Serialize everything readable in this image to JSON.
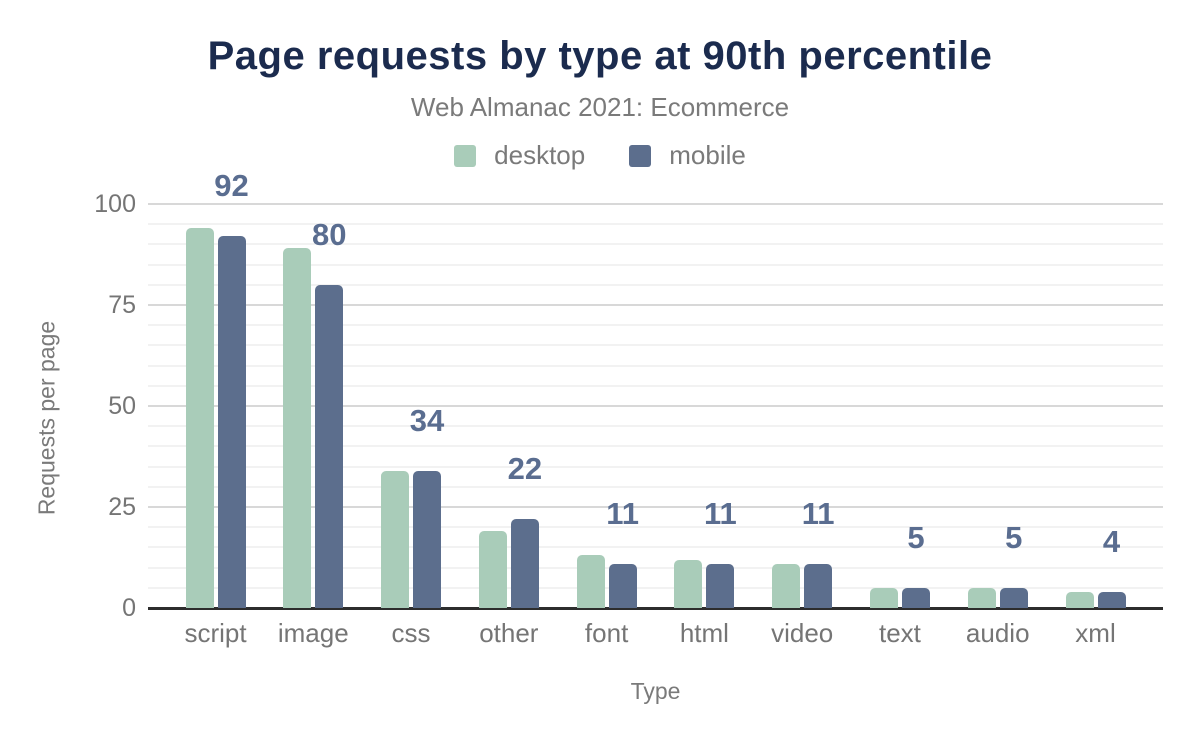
{
  "chart_data": {
    "type": "bar",
    "title": "Page requests by type at 90th percentile",
    "subtitle": "Web Almanac 2021: Ecommerce",
    "xlabel": "Type",
    "ylabel": "Requests per page",
    "ylim": [
      0,
      100
    ],
    "yticks": [
      0,
      25,
      50,
      75,
      100
    ],
    "grid": "horizontal; faint minor lines every 5, slightly darker major lines every 25",
    "legend_position": "top center",
    "categories": [
      "script",
      "image",
      "css",
      "other",
      "font",
      "html",
      "video",
      "text",
      "audio",
      "xml"
    ],
    "series": [
      {
        "name": "desktop",
        "color": "#a9ccb9",
        "values": [
          94,
          89,
          34,
          19,
          13,
          12,
          11,
          5,
          5,
          4
        ]
      },
      {
        "name": "mobile",
        "color": "#5c6e8d",
        "values": [
          92,
          80,
          34,
          22,
          11,
          11,
          11,
          5,
          5,
          4
        ]
      }
    ],
    "data_labels": {
      "shown_for_series": "mobile",
      "values": [
        "92",
        "80",
        "34",
        "22",
        "11",
        "11",
        "11",
        "5",
        "5",
        "4"
      ],
      "color": "#5a6d90"
    }
  },
  "colors": {
    "title": "#1b2b4e",
    "subtitle_text": "#7a7a7a",
    "axis_text": "#757575",
    "axis_line": "#2d2d2d",
    "gridline_major": "#d8d8d8",
    "gridline_minor": "#f2f2f2",
    "background": "#ffffff"
  }
}
